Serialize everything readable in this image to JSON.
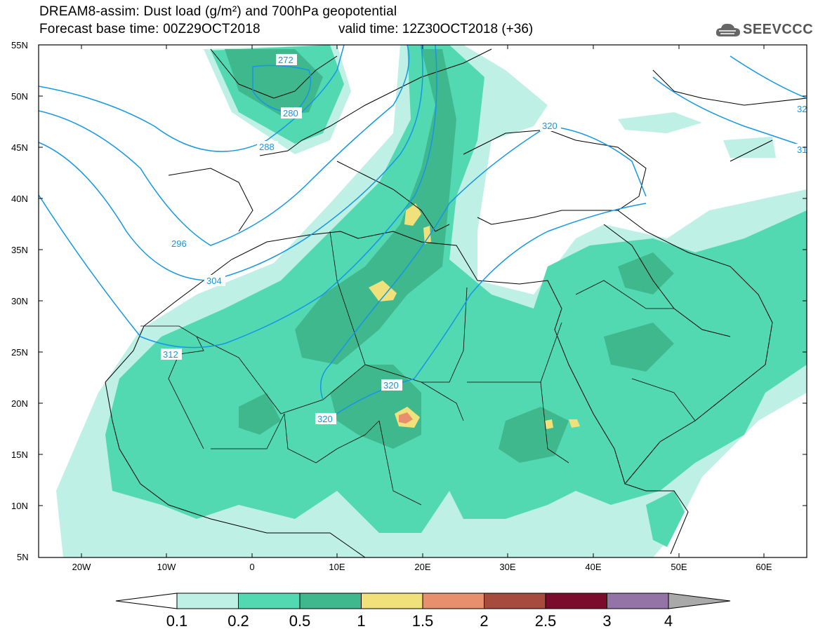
{
  "header": {
    "title_line1": "DREAM8-assim: Dust load (g/m²) and 700hPa geopotential",
    "base_time": "Forecast base time: 00Z29OCT2018",
    "valid_time": "valid time: 12Z30OCT2018 (+36)",
    "logo_text": "SEEVCCC"
  },
  "map": {
    "lat_labels": [
      "55N",
      "50N",
      "45N",
      "40N",
      "35N",
      "30N",
      "25N",
      "20N",
      "15N",
      "10N",
      "5N"
    ],
    "lon_labels": [
      "20W",
      "10W",
      "0",
      "10E",
      "20E",
      "30E",
      "40E",
      "50E",
      "60E"
    ],
    "contour_labels": [
      "272",
      "280",
      "288",
      "296",
      "304",
      "312",
      "320",
      "320",
      "320",
      "32",
      "31"
    ]
  },
  "colorbar": {
    "colors": [
      "#ffffff",
      "#bff0e6",
      "#52d9b1",
      "#3fb88e",
      "#f1e17a",
      "#e8906d",
      "#a64b3e",
      "#7c0c2c",
      "#9474a6",
      "#a9a9a9"
    ],
    "tick_labels": [
      "0.1",
      "0.2",
      "0.5",
      "1",
      "1.5",
      "2",
      "2.5",
      "3",
      "4"
    ]
  }
}
